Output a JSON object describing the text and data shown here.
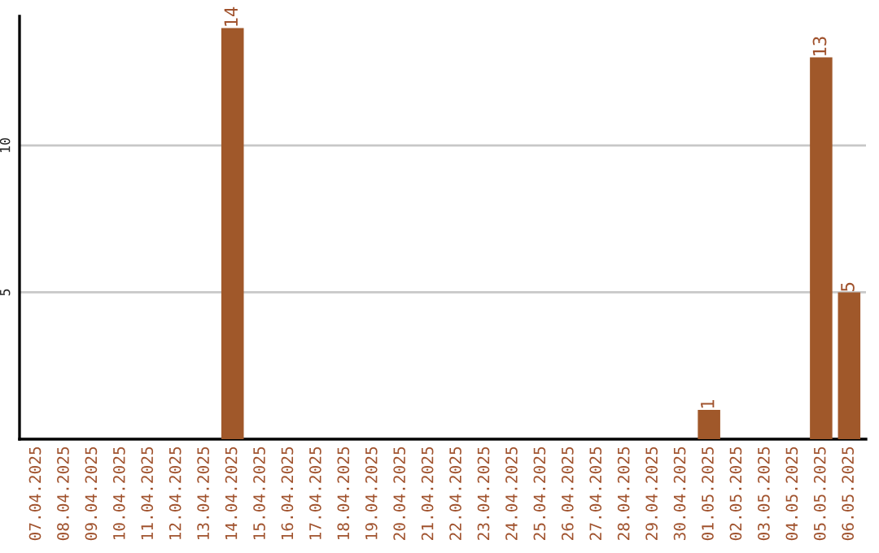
{
  "chart_data": {
    "type": "bar",
    "categories": [
      "07.04.2025",
      "08.04.2025",
      "09.04.2025",
      "10.04.2025",
      "11.04.2025",
      "12.04.2025",
      "13.04.2025",
      "14.04.2025",
      "15.04.2025",
      "16.04.2025",
      "17.04.2025",
      "18.04.2025",
      "19.04.2025",
      "20.04.2025",
      "21.04.2025",
      "22.04.2025",
      "23.04.2025",
      "24.04.2025",
      "25.04.2025",
      "26.04.2025",
      "27.04.2025",
      "28.04.2025",
      "29.04.2025",
      "30.04.2025",
      "01.05.2025",
      "02.05.2025",
      "03.05.2025",
      "04.05.2025",
      "05.05.2025",
      "06.05.2025"
    ],
    "values": [
      0,
      0,
      0,
      0,
      0,
      0,
      0,
      14,
      0,
      0,
      0,
      0,
      0,
      0,
      0,
      0,
      0,
      0,
      0,
      0,
      0,
      0,
      0,
      0,
      1,
      0,
      0,
      0,
      13,
      5
    ],
    "value_labels": [
      null,
      null,
      null,
      null,
      null,
      null,
      null,
      "14",
      null,
      null,
      null,
      null,
      null,
      null,
      null,
      null,
      null,
      null,
      null,
      null,
      null,
      null,
      null,
      null,
      "1",
      null,
      null,
      null,
      "13",
      "5"
    ],
    "color": "#a0582a",
    "ylim": [
      0,
      14.4
    ],
    "yticks": [
      5,
      10
    ],
    "grid": "y"
  }
}
